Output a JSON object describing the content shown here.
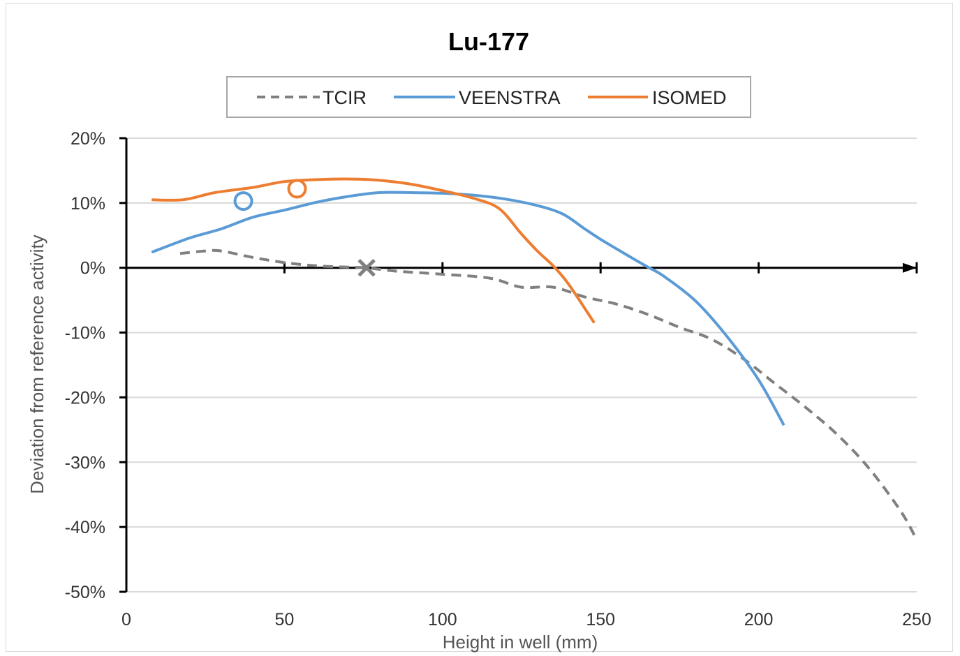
{
  "chart_data": {
    "type": "line",
    "title": "Lu-177",
    "xlabel": "Height in well (mm)",
    "ylabel": "Deviation from reference activity",
    "xlim": [
      0,
      250
    ],
    "ylim": [
      -50,
      20
    ],
    "x_ticks": [
      0,
      50,
      100,
      150,
      200,
      250
    ],
    "x_tick_labels": [
      "0",
      "50",
      "100",
      "150",
      "200",
      "250"
    ],
    "y_ticks": [
      20,
      10,
      0,
      -10,
      -20,
      -30,
      -40,
      -50
    ],
    "y_tick_labels": [
      "20%",
      "10%",
      "0%",
      "-10%",
      "-20%",
      "-30%",
      "-40%",
      "-50%"
    ],
    "grid": "horizontal",
    "legend": "top",
    "series": [
      {
        "name": "TCIR",
        "color": "#808080",
        "dash": "dashed",
        "points": [
          [
            17,
            2.2
          ],
          [
            25,
            2.6
          ],
          [
            30,
            2.6
          ],
          [
            40,
            1.6
          ],
          [
            50,
            0.8
          ],
          [
            60,
            0.3
          ],
          [
            70,
            0.1
          ],
          [
            76,
            0.0
          ],
          [
            85,
            -0.5
          ],
          [
            100,
            -1.0
          ],
          [
            115,
            -1.6
          ],
          [
            125,
            -3.0
          ],
          [
            135,
            -3.0
          ],
          [
            145,
            -4.5
          ],
          [
            155,
            -5.6
          ],
          [
            165,
            -7.2
          ],
          [
            175,
            -9.2
          ],
          [
            185,
            -11.0
          ],
          [
            195,
            -14.0
          ],
          [
            205,
            -17.8
          ],
          [
            215,
            -21.6
          ],
          [
            225,
            -25.8
          ],
          [
            235,
            -31.0
          ],
          [
            245,
            -37.6
          ],
          [
            250,
            -42.0
          ]
        ]
      },
      {
        "name": "VEENSTRA",
        "color": "#5B9BD5",
        "dash": "solid",
        "points": [
          [
            8,
            2.4
          ],
          [
            20,
            4.6
          ],
          [
            30,
            6.0
          ],
          [
            40,
            7.8
          ],
          [
            50,
            8.9
          ],
          [
            60,
            10.1
          ],
          [
            70,
            11.0
          ],
          [
            80,
            11.6
          ],
          [
            90,
            11.6
          ],
          [
            100,
            11.5
          ],
          [
            110,
            11.2
          ],
          [
            120,
            10.6
          ],
          [
            130,
            9.6
          ],
          [
            138,
            8.3
          ],
          [
            145,
            6.0
          ],
          [
            150,
            4.4
          ],
          [
            160,
            1.5
          ],
          [
            165,
            0.1
          ],
          [
            170,
            -1.3
          ],
          [
            180,
            -5.1
          ],
          [
            190,
            -10.6
          ],
          [
            200,
            -17.3
          ],
          [
            208,
            -24.3
          ]
        ]
      },
      {
        "name": "ISOMED",
        "color": "#ED7D31",
        "dash": "solid",
        "points": [
          [
            8,
            10.5
          ],
          [
            18,
            10.5
          ],
          [
            28,
            11.6
          ],
          [
            40,
            12.4
          ],
          [
            50,
            13.3
          ],
          [
            60,
            13.6
          ],
          [
            70,
            13.7
          ],
          [
            80,
            13.5
          ],
          [
            90,
            12.9
          ],
          [
            100,
            11.9
          ],
          [
            110,
            10.7
          ],
          [
            118,
            9.1
          ],
          [
            125,
            5.2
          ],
          [
            130,
            2.6
          ],
          [
            135,
            0.3
          ],
          [
            140,
            -2.6
          ],
          [
            148,
            -8.5
          ]
        ]
      }
    ],
    "markers": [
      {
        "series": "VEENSTRA",
        "shape": "circle",
        "x": 37,
        "y": 10.3,
        "color": "#5B9BD5"
      },
      {
        "series": "ISOMED",
        "shape": "circle",
        "x": 54,
        "y": 12.2,
        "color": "#ED7D31"
      },
      {
        "series": "TCIR",
        "shape": "x",
        "x": 76,
        "y": 0.0,
        "color": "#808080"
      }
    ]
  }
}
